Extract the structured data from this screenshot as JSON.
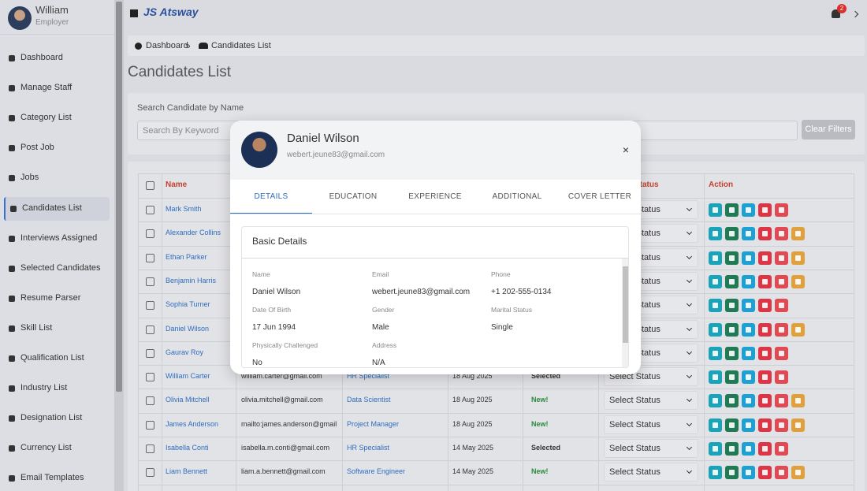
{
  "user": {
    "name": "William",
    "role": "Employer"
  },
  "brand": "JS Atsway",
  "notifications": 2,
  "menu": [
    "Dashboard",
    "Manage Staff",
    "Category List",
    "Post Job",
    "Jobs",
    "Candidates List",
    "Interviews Assigned",
    "Selected Candidates",
    "Resume Parser",
    "Skill List",
    "Qualification List",
    "Industry List",
    "Designation List",
    "Currency List",
    "Email Templates"
  ],
  "active_menu_index": 5,
  "breadcrumb": {
    "items": [
      "Dashboard",
      "Candidates List"
    ],
    "separator": "»"
  },
  "page_title": "Candidates List",
  "search": {
    "label": "Search Candidate by Name",
    "placeholder": "Search By Keyword",
    "button": "Clear Filters"
  },
  "table": {
    "headers": [
      "Name",
      "Status",
      "Action"
    ],
    "rows": [
      {
        "name": "Mark Smith",
        "select": "Select Status",
        "actions": 5
      },
      {
        "name": "Alexander Collins",
        "select": "Select Status",
        "actions": 6
      },
      {
        "name": "Ethan Parker",
        "select": "Select Status",
        "actions": 6
      },
      {
        "name": "Benjamin Harris",
        "select": "Select Status",
        "actions": 6
      },
      {
        "name": "Sophia Turner",
        "select": "Select Status",
        "actions": 5
      },
      {
        "name": "Daniel Wilson",
        "select": "Select Status",
        "actions": 6
      },
      {
        "name": "Gaurav Roy",
        "select": "Select Status",
        "actions": 5
      },
      {
        "name": "William Carter",
        "email": "william.carter@gmail.com",
        "job": "HR Specialist",
        "date": "18 Aug 2025",
        "tag": "Selected",
        "select": "Select Status",
        "actions": 5
      },
      {
        "name": "Olivia Mitchell",
        "email": "olivia.mitchell@gmail.com",
        "job": "Data Scientist",
        "date": "18 Aug 2025",
        "tag": "New!",
        "select": "Select Status",
        "actions": 6
      },
      {
        "name": "James Anderson",
        "email": "mailto:james.anderson@gmail...",
        "job": "Project Manager",
        "date": "18 Aug 2025",
        "tag": "New!",
        "select": "Select Status",
        "actions": 6
      },
      {
        "name": "Isabella Conti",
        "email": "isabella.m.conti@gmail.com",
        "job": "HR Specialist",
        "date": "14 May 2025",
        "tag": "Selected",
        "select": "Select Status",
        "actions": 5
      },
      {
        "name": "Liam Bennett",
        "email": "liam.a.bennett@gmail.com",
        "job": "Software Engineer",
        "date": "14 May 2025",
        "tag": "New!",
        "select": "Select Status",
        "actions": 6
      }
    ]
  },
  "modal": {
    "name": "Daniel Wilson",
    "email": "webert.jeune83@gmail.com",
    "tabs": [
      "DETAILS",
      "EDUCATION",
      "EXPERIENCE",
      "ADDITIONAL",
      "COVER LETTER"
    ],
    "active_tab": 0,
    "section": "Basic Details",
    "fields": [
      {
        "label": "Name",
        "value": "Daniel Wilson"
      },
      {
        "label": "Email",
        "value": "webert.jeune83@gmail.com"
      },
      {
        "label": "Phone",
        "value": "+1 202-555-0134"
      },
      {
        "label": "Date Of Birth",
        "value": "17 Jun 1994"
      },
      {
        "label": "Gender",
        "value": "Male"
      },
      {
        "label": "Marital Status",
        "value": "Single"
      },
      {
        "label": "Physically Challenged",
        "value": "No"
      },
      {
        "label": "Address",
        "value": "N/A"
      }
    ]
  }
}
